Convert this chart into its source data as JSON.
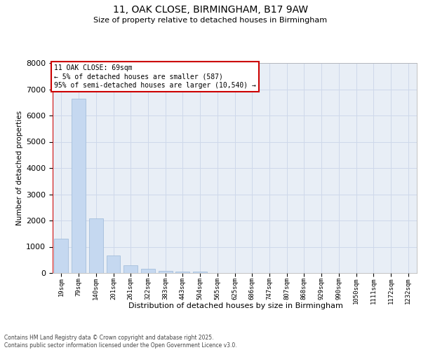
{
  "title_line1": "11, OAK CLOSE, BIRMINGHAM, B17 9AW",
  "title_line2": "Size of property relative to detached houses in Birmingham",
  "xlabel": "Distribution of detached houses by size in Birmingham",
  "ylabel": "Number of detached properties",
  "categories": [
    "19sqm",
    "79sqm",
    "140sqm",
    "201sqm",
    "261sqm",
    "322sqm",
    "383sqm",
    "443sqm",
    "504sqm",
    "565sqm",
    "625sqm",
    "686sqm",
    "747sqm",
    "807sqm",
    "868sqm",
    "929sqm",
    "990sqm",
    "1050sqm",
    "1111sqm",
    "1172sqm",
    "1232sqm"
  ],
  "values": [
    1320,
    6650,
    2090,
    680,
    290,
    150,
    90,
    60,
    60,
    0,
    0,
    0,
    0,
    0,
    0,
    0,
    0,
    0,
    0,
    0,
    0
  ],
  "bar_color": "#c5d8f0",
  "bar_edge_color": "#9ab8d8",
  "highlight_line_color": "#cc0000",
  "ylim": [
    0,
    8000
  ],
  "yticks": [
    0,
    1000,
    2000,
    3000,
    4000,
    5000,
    6000,
    7000,
    8000
  ],
  "annotation_text": "11 OAK CLOSE: 69sqm\n← 5% of detached houses are smaller (587)\n95% of semi-detached houses are larger (10,540) →",
  "annotation_box_facecolor": "#ffffff",
  "annotation_box_edgecolor": "#cc0000",
  "footer_text": "Contains HM Land Registry data © Crown copyright and database right 2025.\nContains public sector information licensed under the Open Government Licence v3.0.",
  "grid_color": "#ced8ea",
  "background_color": "#e8eef6"
}
